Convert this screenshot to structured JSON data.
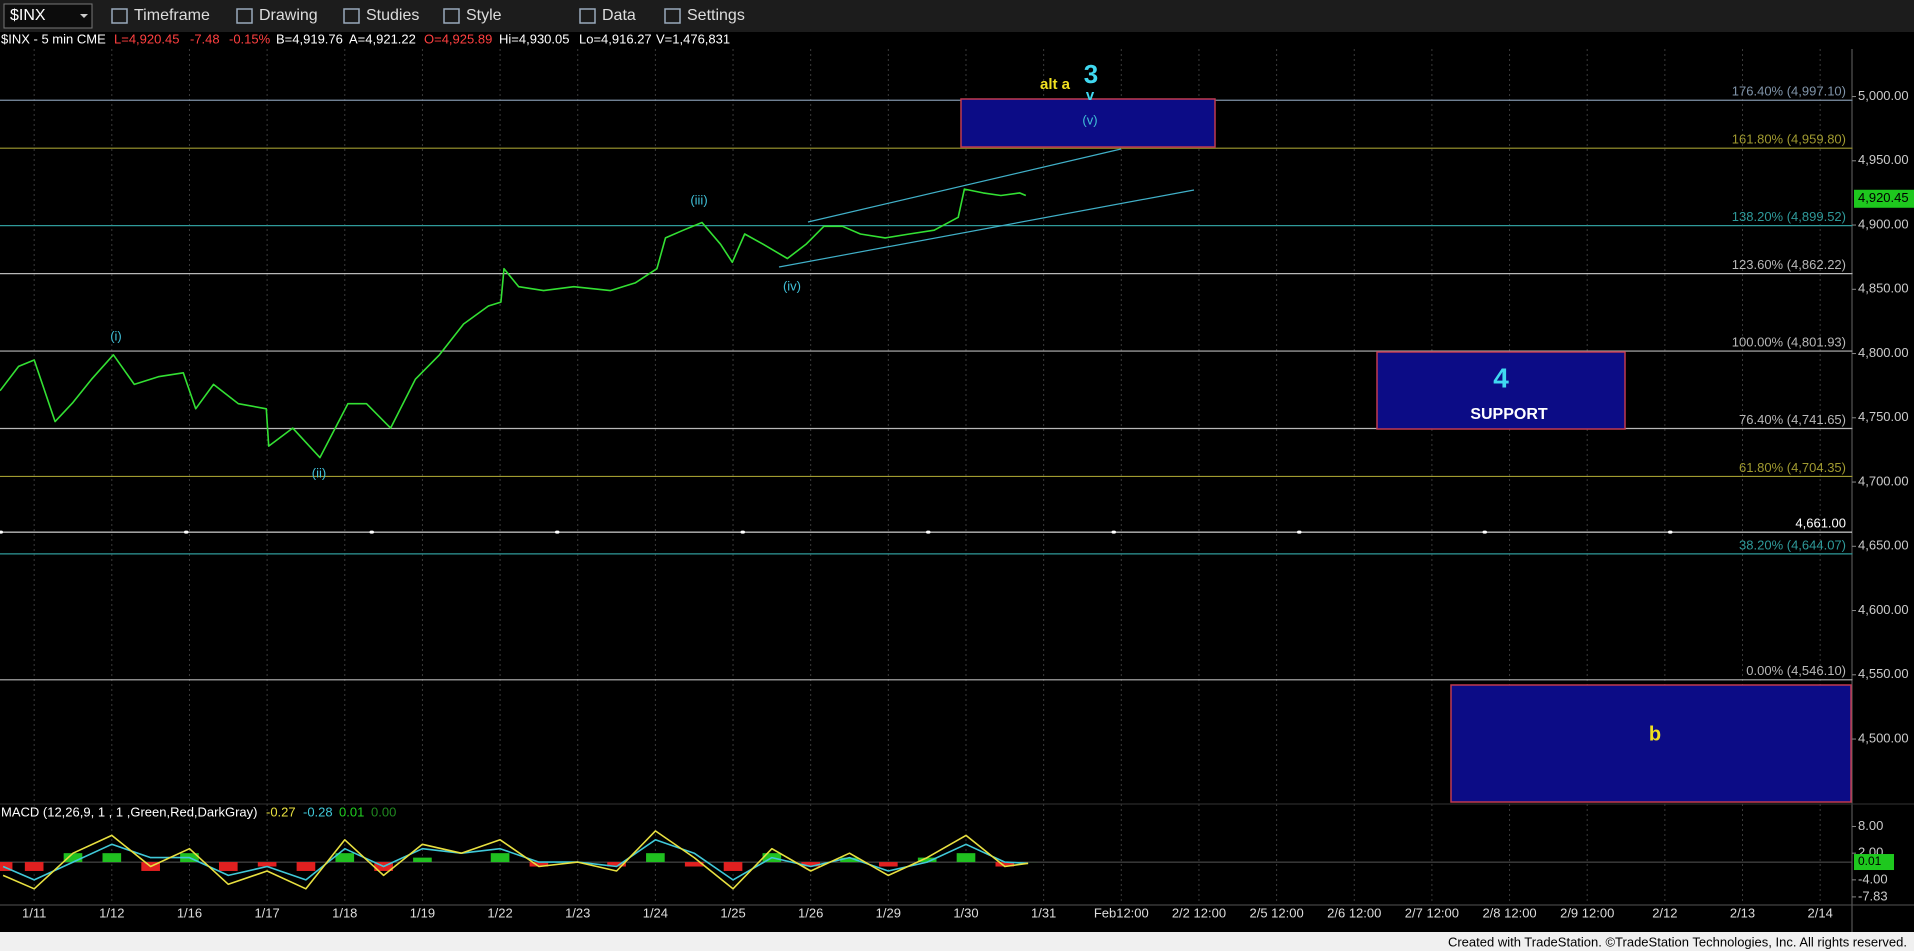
{
  "toolbar": {
    "symbol": "$INX",
    "items": [
      "Timeframe",
      "Drawing",
      "Studies",
      "Style",
      "Data",
      "Settings"
    ]
  },
  "quote": [
    {
      "text": "$INX - 5 min  CME",
      "color": "#ffffff"
    },
    {
      "text": "L=4,920.45",
      "color": "#ff4040"
    },
    {
      "text": "-7.48",
      "color": "#ff4040"
    },
    {
      "text": "-0.15%",
      "color": "#ff4040"
    },
    {
      "text": "B=4,919.76",
      "color": "#ffffff"
    },
    {
      "text": "A=4,921.22",
      "color": "#ffffff"
    },
    {
      "text": "O=4,925.89",
      "color": "#ff4040"
    },
    {
      "text": "Hi=4,930.05",
      "color": "#ffffff"
    },
    {
      "text": "Lo=4,916.27",
      "color": "#ffffff"
    },
    {
      "text": "V=1,476,831",
      "color": "#ffffff"
    }
  ],
  "footer": "Created with TradeStation. ©TradeStation Technologies, Inc. All rights reserved.",
  "chart_data": [
    {
      "type": "line",
      "x": [
        -0.44,
        -0.2,
        0,
        0.27,
        0.5,
        0.74,
        1.02,
        1.29,
        1.6,
        1.92,
        2.08,
        2.31,
        2.63,
        2.99,
        3.02,
        3.33,
        3.68,
        4.04,
        4.28,
        4.59,
        4.91,
        5.22,
        5.53,
        5.85,
        6.01,
        6.05,
        6.24,
        6.56,
        6.95,
        7.42,
        7.74,
        8.02,
        8.13,
        8.36,
        8.6,
        8.84,
        8.99,
        9.15,
        9.39,
        9.7,
        9.94,
        10.17,
        10.41,
        10.64,
        10.96,
        11.27,
        11.59,
        11.9,
        11.98,
        12.22,
        12.45,
        12.69,
        12.77
      ],
      "series": [
        {
          "color": "#33e033",
          "values": [
            4771,
            4790,
            4795,
            4747,
            4762,
            4780,
            4799,
            4776,
            4782,
            4785,
            4757,
            4776,
            4761,
            4757,
            4728,
            4742,
            4719,
            4761,
            4761,
            4742,
            4780,
            4799,
            4823,
            4837,
            4840,
            4866,
            4852,
            4849,
            4852,
            4849,
            4855,
            4866,
            4890,
            4896,
            4902,
            4885,
            4871,
            4893,
            4885,
            4874,
            4885,
            4899,
            4899,
            4893,
            4890,
            4893,
            4896,
            4906,
            4928,
            4925,
            4923,
            4925,
            4923
          ]
        }
      ],
      "xlim": [
        -0.44,
        23.41
      ],
      "xticks": [
        {
          "value": 0,
          "label": "1/11"
        },
        {
          "value": 1,
          "label": "1/12"
        },
        {
          "value": 2,
          "label": "1/16"
        },
        {
          "value": 3,
          "label": "1/17"
        },
        {
          "value": 4,
          "label": "1/18"
        },
        {
          "value": 5,
          "label": "1/19"
        },
        {
          "value": 6,
          "label": "1/22"
        },
        {
          "value": 7,
          "label": "1/23"
        },
        {
          "value": 8,
          "label": "1/24"
        },
        {
          "value": 9,
          "label": "1/25"
        },
        {
          "value": 10,
          "label": "1/26"
        },
        {
          "value": 11,
          "label": "1/29"
        },
        {
          "value": 12,
          "label": "1/30"
        },
        {
          "value": 13,
          "label": "1/31"
        },
        {
          "value": 14,
          "label": "Feb12:00"
        },
        {
          "value": 15,
          "label": "2/2 12:00"
        },
        {
          "value": 16,
          "label": "2/5 12:00"
        },
        {
          "value": 17,
          "label": "2/6 12:00"
        },
        {
          "value": 18,
          "label": "2/7 12:00"
        },
        {
          "value": 19,
          "label": "2/8 12:00"
        },
        {
          "value": 20,
          "label": "2/9 12:00"
        },
        {
          "value": 21,
          "label": "2/12"
        },
        {
          "value": 22,
          "label": "2/13"
        },
        {
          "value": 23,
          "label": "2/14"
        }
      ],
      "ylim": [
        4451,
        5037
      ],
      "yticks": [
        {
          "value": 5000,
          "label": "5,000.00"
        },
        {
          "value": 4950,
          "label": "4,950.00"
        },
        {
          "value": 4900,
          "label": "4,900.00"
        },
        {
          "value": 4850,
          "label": "4,850.00"
        },
        {
          "value": 4800,
          "label": "4,800.00"
        },
        {
          "value": 4750,
          "label": "4,750.00"
        },
        {
          "value": 4700,
          "label": "4,700.00"
        },
        {
          "value": 4650,
          "label": "4,650.00"
        },
        {
          "value": 4600,
          "label": "4,600.00"
        },
        {
          "value": 4550,
          "label": "4,550.00"
        },
        {
          "value": 4500,
          "label": "4,500.00"
        }
      ],
      "levels": [
        {
          "label": "176.40% (4,997.10)",
          "value": 4997.1,
          "color": "#7f93a8",
          "style": "solid"
        },
        {
          "label": "161.80% (4,959.80)",
          "value": 4959.8,
          "color": "#a09a30",
          "style": "solid"
        },
        {
          "label": "138.20% (4,899.52)",
          "value": 4899.52,
          "color": "#2f9a9a",
          "style": "solid"
        },
        {
          "label": "123.60% (4,862.22)",
          "value": 4862.22,
          "color": "#b8b8b8",
          "style": "solid"
        },
        {
          "label": "100.00% (4,801.93)",
          "value": 4801.93,
          "color": "#b8b8b8",
          "style": "solid"
        },
        {
          "label": "76.40% (4,741.65)",
          "value": 4741.65,
          "color": "#b8b8b8",
          "style": "solid"
        },
        {
          "label": "61.80% (4,704.35)",
          "value": 4704.35,
          "color": "#a09a30",
          "style": "solid"
        },
        {
          "label": "4,661.00",
          "value": 4661,
          "color": "#ffffff",
          "style": "dotted"
        },
        {
          "label": "38.20% (4,644.07)",
          "value": 4644.07,
          "color": "#2f9a9a",
          "style": "solid"
        },
        {
          "label": "0.00% (4,546.10)",
          "value": 4546.1,
          "color": "#b8b8b8",
          "style": "solid"
        }
      ],
      "annotations": [
        {
          "text": "alt a",
          "color": "#f0e020"
        },
        {
          "text": "3",
          "color": "#40d8f0"
        },
        {
          "text": "v",
          "color": "#40d8f0"
        },
        {
          "text": "(v)",
          "color": "#40c0d8"
        },
        {
          "text": "(i)",
          "color": "#40c0d8"
        },
        {
          "text": "(ii)",
          "color": "#40c0d8"
        },
        {
          "text": "(iii)",
          "color": "#40c0d8"
        },
        {
          "text": "(iv)",
          "color": "#40c0d8"
        },
        {
          "text": "4",
          "color": "#40d8f0"
        },
        {
          "text": "SUPPORT",
          "color": "#ffffff"
        },
        {
          "text": "b",
          "color": "#f0e020"
        }
      ],
      "last_price": {
        "value": 4920.45,
        "label": "4,920.45"
      }
    },
    {
      "type": "line",
      "title": "MACD (12,26,9, 1 , 1 ,Green,Red,DarkGray)",
      "readouts": [
        {
          "text": "-0.27",
          "color": "#e8e040"
        },
        {
          "text": "-0.28",
          "color": "#40c8d8"
        },
        {
          "text": "0.01",
          "color": "#20d020"
        },
        {
          "text": "0.00",
          "color": "#208a20"
        }
      ],
      "x": [
        -0.4,
        0,
        0.5,
        1,
        1.5,
        2,
        2.5,
        3,
        3.5,
        4,
        4.5,
        5,
        5.5,
        6,
        6.5,
        7,
        7.5,
        8,
        8.5,
        9,
        9.5,
        10,
        10.5,
        11,
        11.5,
        12,
        12.5,
        12.8
      ],
      "series": [
        {
          "color": "#e8e040",
          "values": [
            -3,
            -6,
            2,
            6,
            -1,
            3,
            -5,
            -2,
            -6,
            5,
            -3,
            4,
            2,
            5,
            -1,
            0,
            -2,
            7,
            1,
            -6,
            3,
            -2,
            2,
            -3,
            1,
            6,
            -1,
            -0.27
          ]
        },
        {
          "color": "#40c8d8",
          "values": [
            -1,
            -4,
            0,
            4,
            1,
            1,
            -3,
            -1,
            -4,
            3,
            -1,
            3,
            2,
            3,
            0,
            0,
            -1,
            5,
            2,
            -4,
            1,
            -1,
            1,
            -2,
            0,
            4,
            0,
            -0.28
          ]
        },
        {
          "type": "bar",
          "color": "#20c020",
          "negative_color": "#e02020",
          "values": [
            -2,
            -2,
            2,
            2,
            -2,
            2,
            -2,
            -1,
            -2,
            2,
            -2,
            1,
            0,
            2,
            -1,
            0,
            -1,
            2,
            -1,
            -2,
            2,
            -1,
            1,
            -1,
            1,
            2,
            -1,
            0.01
          ]
        }
      ],
      "xlim": [
        -0.44,
        23.41
      ],
      "ylim": [
        -9.2,
        12.6
      ],
      "yticks": [
        {
          "value": 8,
          "label": "8.00"
        },
        {
          "value": 2,
          "label": "2.00"
        },
        {
          "value": -4,
          "label": "-4.00"
        },
        {
          "value": -7.83,
          "label": "-7.83"
        }
      ],
      "last_value": {
        "value": 0.01,
        "label": "0.01"
      }
    }
  ]
}
